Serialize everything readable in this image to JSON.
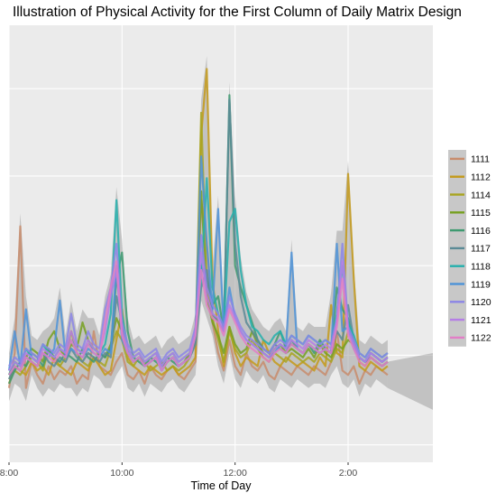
{
  "chart_data": {
    "type": "line",
    "title": "Illustration of Physical Activity for the First Column of Daily Matrix Design",
    "xlabel": "Time of Day",
    "ylabel": "",
    "x_ticks": [
      "8:00",
      "10:00",
      "12:00",
      "2:00"
    ],
    "x_tick_hours": [
      8,
      10,
      12,
      14
    ],
    "xlim": [
      8,
      15.5
    ],
    "ylim": [
      0,
      1
    ],
    "y_gridlines": [
      0.04,
      0.245,
      0.45,
      0.655,
      0.855
    ],
    "grid": true,
    "legend_position": "right",
    "x_hours": [
      8.0,
      8.1,
      8.2,
      8.3,
      8.4,
      8.5,
      8.6,
      8.7,
      8.8,
      8.9,
      9.0,
      9.1,
      9.2,
      9.3,
      9.4,
      9.5,
      9.6,
      9.7,
      9.8,
      9.9,
      10.0,
      10.1,
      10.2,
      10.3,
      10.4,
      10.5,
      10.6,
      10.7,
      10.8,
      10.9,
      11.0,
      11.1,
      11.2,
      11.3,
      11.4,
      11.5,
      11.6,
      11.7,
      11.8,
      11.9,
      12.0,
      12.1,
      12.2,
      12.3,
      12.4,
      12.5,
      12.6,
      12.7,
      12.8,
      12.9,
      13.0,
      13.1,
      13.2,
      13.3,
      13.4,
      13.5,
      13.6,
      13.7,
      13.8,
      13.9,
      14.0,
      14.1,
      14.2,
      14.3,
      14.4,
      14.5,
      14.6,
      14.7
    ],
    "series": [
      {
        "name": "1111",
        "color": "#c88c6c",
        "values": [
          0.17,
          0.25,
          0.54,
          0.17,
          0.23,
          0.2,
          0.18,
          0.22,
          0.19,
          0.21,
          0.2,
          0.22,
          0.18,
          0.2,
          0.19,
          0.3,
          0.22,
          0.21,
          0.2,
          0.23,
          0.25,
          0.2,
          0.19,
          0.21,
          0.18,
          0.22,
          0.2,
          0.19,
          0.21,
          0.22,
          0.2,
          0.19,
          0.21,
          0.23,
          0.6,
          0.5,
          0.32,
          0.25,
          0.21,
          0.28,
          0.22,
          0.2,
          0.25,
          0.22,
          0.21,
          0.23,
          0.2,
          0.19,
          0.22,
          0.21,
          0.2,
          0.22,
          0.21,
          0.2,
          0.22,
          0.21,
          0.2,
          0.23,
          0.3,
          0.21,
          0.2,
          0.22,
          0.18,
          0.21,
          0.2,
          0.22,
          0.21,
          0.2
        ]
      },
      {
        "name": "1112",
        "color": "#c49a1a",
        "values": [
          0.18,
          0.22,
          0.21,
          0.2,
          0.23,
          0.21,
          0.22,
          0.2,
          0.24,
          0.22,
          0.21,
          0.2,
          0.23,
          0.22,
          0.21,
          0.24,
          0.22,
          0.2,
          0.21,
          0.28,
          0.35,
          0.24,
          0.22,
          0.21,
          0.2,
          0.22,
          0.21,
          0.2,
          0.21,
          0.22,
          0.2,
          0.21,
          0.22,
          0.24,
          0.75,
          0.9,
          0.42,
          0.3,
          0.22,
          0.31,
          0.25,
          0.22,
          0.24,
          0.23,
          0.22,
          0.28,
          0.25,
          0.23,
          0.22,
          0.24,
          0.23,
          0.22,
          0.23,
          0.22,
          0.21,
          0.24,
          0.22,
          0.36,
          0.25,
          0.24,
          0.66,
          0.42,
          0.22,
          0.21,
          0.23,
          0.22,
          0.21,
          0.22
        ]
      },
      {
        "name": "1114",
        "color": "#a8a420",
        "values": [
          0.19,
          0.21,
          0.2,
          0.22,
          0.24,
          0.23,
          0.21,
          0.26,
          0.23,
          0.22,
          0.24,
          0.3,
          0.25,
          0.23,
          0.22,
          0.24,
          0.23,
          0.22,
          0.26,
          0.3,
          0.28,
          0.23,
          0.22,
          0.24,
          0.23,
          0.21,
          0.22,
          0.23,
          0.21,
          0.22,
          0.21,
          0.22,
          0.24,
          0.28,
          0.8,
          0.4,
          0.33,
          0.28,
          0.23,
          0.3,
          0.26,
          0.24,
          0.25,
          0.28,
          0.26,
          0.24,
          0.23,
          0.25,
          0.24,
          0.23,
          0.25,
          0.24,
          0.23,
          0.24,
          0.23,
          0.25,
          0.24,
          0.23,
          0.26,
          0.25,
          0.3,
          0.28,
          0.23,
          0.22,
          0.24,
          0.23,
          0.22,
          0.23
        ]
      },
      {
        "name": "1115",
        "color": "#76a020",
        "values": [
          0.2,
          0.23,
          0.22,
          0.24,
          0.26,
          0.25,
          0.23,
          0.28,
          0.3,
          0.26,
          0.24,
          0.27,
          0.26,
          0.32,
          0.28,
          0.26,
          0.25,
          0.24,
          0.27,
          0.33,
          0.3,
          0.25,
          0.23,
          0.24,
          0.22,
          0.23,
          0.24,
          0.22,
          0.23,
          0.24,
          0.22,
          0.23,
          0.25,
          0.3,
          0.62,
          0.38,
          0.32,
          0.29,
          0.25,
          0.31,
          0.27,
          0.25,
          0.26,
          0.3,
          0.27,
          0.25,
          0.24,
          0.26,
          0.27,
          0.25,
          0.26,
          0.25,
          0.24,
          0.26,
          0.24,
          0.27,
          0.25,
          0.24,
          0.27,
          0.26,
          0.28,
          0.27,
          0.24,
          0.23,
          0.25,
          0.24,
          0.23,
          0.24
        ]
      },
      {
        "name": "1116",
        "color": "#3e9a70",
        "values": [
          0.18,
          0.21,
          0.23,
          0.22,
          0.25,
          0.24,
          0.22,
          0.26,
          0.24,
          0.23,
          0.25,
          0.24,
          0.23,
          0.26,
          0.24,
          0.23,
          0.25,
          0.24,
          0.26,
          0.42,
          0.48,
          0.3,
          0.24,
          0.23,
          0.22,
          0.24,
          0.23,
          0.22,
          0.24,
          0.23,
          0.22,
          0.23,
          0.24,
          0.28,
          0.45,
          0.42,
          0.36,
          0.38,
          0.3,
          0.84,
          0.45,
          0.4,
          0.36,
          0.32,
          0.28,
          0.26,
          0.25,
          0.27,
          0.3,
          0.26,
          0.27,
          0.26,
          0.25,
          0.27,
          0.25,
          0.28,
          0.26,
          0.25,
          0.4,
          0.35,
          0.33,
          0.27,
          0.24,
          0.23,
          0.25,
          0.24,
          0.23,
          0.24
        ]
      },
      {
        "name": "1117",
        "color": "#5a8a96",
        "values": [
          0.19,
          0.22,
          0.21,
          0.24,
          0.23,
          0.22,
          0.25,
          0.23,
          0.22,
          0.24,
          0.23,
          0.26,
          0.24,
          0.23,
          0.25,
          0.24,
          0.23,
          0.25,
          0.24,
          0.38,
          0.32,
          0.25,
          0.23,
          0.24,
          0.22,
          0.23,
          0.24,
          0.21,
          0.23,
          0.24,
          0.22,
          0.23,
          0.24,
          0.27,
          0.4,
          0.44,
          0.34,
          0.32,
          0.3,
          0.83,
          0.5,
          0.38,
          0.32,
          0.3,
          0.28,
          0.26,
          0.25,
          0.27,
          0.26,
          0.25,
          0.28,
          0.26,
          0.25,
          0.27,
          0.26,
          0.25,
          0.26,
          0.25,
          0.3,
          0.28,
          0.36,
          0.28,
          0.24,
          0.23,
          0.24,
          0.23,
          0.22,
          0.23
        ]
      },
      {
        "name": "1118",
        "color": "#25b0ad",
        "values": [
          0.2,
          0.23,
          0.22,
          0.26,
          0.24,
          0.23,
          0.27,
          0.25,
          0.24,
          0.26,
          0.25,
          0.28,
          0.26,
          0.25,
          0.27,
          0.26,
          0.25,
          0.27,
          0.34,
          0.6,
          0.34,
          0.26,
          0.24,
          0.25,
          0.23,
          0.24,
          0.25,
          0.22,
          0.24,
          0.25,
          0.23,
          0.24,
          0.25,
          0.3,
          0.42,
          0.65,
          0.4,
          0.34,
          0.31,
          0.55,
          0.58,
          0.44,
          0.36,
          0.31,
          0.3,
          0.28,
          0.27,
          0.29,
          0.3,
          0.27,
          0.29,
          0.28,
          0.27,
          0.29,
          0.28,
          0.27,
          0.28,
          0.27,
          0.34,
          0.45,
          0.32,
          0.29,
          0.25,
          0.24,
          0.26,
          0.25,
          0.24,
          0.25
        ]
      },
      {
        "name": "1119",
        "color": "#4d93d8",
        "values": [
          0.21,
          0.3,
          0.22,
          0.35,
          0.24,
          0.23,
          0.25,
          0.24,
          0.26,
          0.37,
          0.24,
          0.26,
          0.25,
          0.24,
          0.26,
          0.25,
          0.24,
          0.26,
          0.25,
          0.45,
          0.28,
          0.25,
          0.23,
          0.24,
          0.22,
          0.23,
          0.24,
          0.21,
          0.23,
          0.24,
          0.22,
          0.23,
          0.24,
          0.29,
          0.7,
          0.5,
          0.35,
          0.58,
          0.3,
          0.4,
          0.33,
          0.3,
          0.28,
          0.27,
          0.26,
          0.25,
          0.24,
          0.25,
          0.27,
          0.26,
          0.48,
          0.26,
          0.25,
          0.27,
          0.26,
          0.25,
          0.26,
          0.25,
          0.5,
          0.3,
          0.31,
          0.26,
          0.24,
          0.23,
          0.25,
          0.24,
          0.23,
          0.24
        ]
      },
      {
        "name": "1120",
        "color": "#8c86e6",
        "values": [
          0.22,
          0.24,
          0.23,
          0.26,
          0.25,
          0.24,
          0.27,
          0.26,
          0.25,
          0.27,
          0.26,
          0.34,
          0.27,
          0.26,
          0.3,
          0.27,
          0.26,
          0.35,
          0.4,
          0.5,
          0.32,
          0.27,
          0.25,
          0.26,
          0.24,
          0.25,
          0.26,
          0.23,
          0.25,
          0.26,
          0.24,
          0.25,
          0.26,
          0.31,
          0.52,
          0.4,
          0.36,
          0.34,
          0.31,
          0.38,
          0.34,
          0.31,
          0.29,
          0.28,
          0.27,
          0.26,
          0.25,
          0.27,
          0.28,
          0.27,
          0.29,
          0.28,
          0.27,
          0.29,
          0.28,
          0.27,
          0.28,
          0.27,
          0.33,
          0.5,
          0.31,
          0.28,
          0.25,
          0.24,
          0.26,
          0.25,
          0.24,
          0.25
        ]
      },
      {
        "name": "1121",
        "color": "#b57ee6",
        "values": [
          0.21,
          0.23,
          0.22,
          0.25,
          0.24,
          0.23,
          0.26,
          0.25,
          0.24,
          0.26,
          0.25,
          0.3,
          0.26,
          0.25,
          0.28,
          0.26,
          0.25,
          0.3,
          0.38,
          0.44,
          0.3,
          0.26,
          0.24,
          0.25,
          0.23,
          0.24,
          0.25,
          0.22,
          0.24,
          0.25,
          0.23,
          0.24,
          0.25,
          0.3,
          0.48,
          0.38,
          0.34,
          0.33,
          0.3,
          0.36,
          0.33,
          0.3,
          0.28,
          0.27,
          0.26,
          0.25,
          0.24,
          0.26,
          0.27,
          0.26,
          0.28,
          0.27,
          0.26,
          0.28,
          0.27,
          0.26,
          0.27,
          0.26,
          0.32,
          0.46,
          0.3,
          0.27,
          0.24,
          0.23,
          0.25,
          0.24,
          0.23,
          0.24
        ]
      },
      {
        "name": "1122",
        "color": "#e27ec6",
        "values": [
          0.2,
          0.22,
          0.21,
          0.24,
          0.23,
          0.22,
          0.25,
          0.24,
          0.23,
          0.25,
          0.24,
          0.28,
          0.25,
          0.24,
          0.27,
          0.25,
          0.24,
          0.32,
          0.4,
          0.46,
          0.29,
          0.25,
          0.23,
          0.24,
          0.22,
          0.23,
          0.24,
          0.21,
          0.23,
          0.24,
          0.22,
          0.23,
          0.24,
          0.29,
          0.44,
          0.36,
          0.33,
          0.32,
          0.29,
          0.35,
          0.32,
          0.29,
          0.27,
          0.26,
          0.25,
          0.24,
          0.23,
          0.25,
          0.26,
          0.25,
          0.27,
          0.26,
          0.25,
          0.27,
          0.26,
          0.25,
          0.26,
          0.25,
          0.31,
          0.42,
          0.29,
          0.26,
          0.23,
          0.22,
          0.24,
          0.23,
          0.22,
          0.23
        ]
      }
    ]
  }
}
